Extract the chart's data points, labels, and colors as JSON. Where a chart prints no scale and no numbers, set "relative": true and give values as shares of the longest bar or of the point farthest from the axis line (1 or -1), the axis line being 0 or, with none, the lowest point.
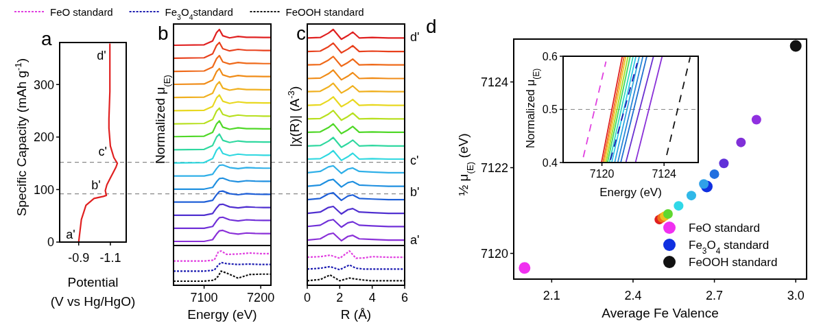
{
  "chart_data": [
    {
      "type": "line",
      "title": "a",
      "xlabel": "Potential\n(V vs Hg/HgO)",
      "ylabel": "Specific Capacity (mAh g$^{-1}$)",
      "xlim": [
        -0.78,
        -1.2
      ],
      "ylim": [
        0,
        380
      ],
      "xticks": [
        -0.9,
        -1.1
      ],
      "yticks": [
        0,
        100,
        200,
        300
      ],
      "x": [
        -0.9,
        -0.917,
        -0.946,
        -0.997,
        -1.056,
        -1.075,
        -1.068,
        -1.078,
        -1.1,
        -1.136,
        -1.144,
        -1.122,
        -1.1,
        -1.091,
        -1.091,
        -1.097,
        -1.097
      ],
      "series": [
        {
          "color": "#e02020",
          "values": [
            0,
            43,
            70,
            83,
            87,
            89,
            98,
            109,
            122,
            143,
            150,
            161,
            183,
            217,
            235,
            287,
            378
          ]
        }
      ],
      "ref_lines": [
        {
          "axis": "y",
          "value": 152,
          "color": "#888888",
          "line_style": "dashed"
        },
        {
          "axis": "y",
          "value": 92,
          "color": "#888888",
          "line_style": "dashed"
        }
      ],
      "annotations": [
        {
          "text": "a'",
          "x": -0.9,
          "y": 15
        },
        {
          "text": "b'",
          "x": -1.06,
          "y": 108
        },
        {
          "text": "c'",
          "x": -1.1,
          "y": 172
        },
        {
          "text": "d'",
          "x": -1.095,
          "y": 355
        }
      ]
    },
    {
      "type": "line",
      "title": "b",
      "ylabel": "Normalized μ$_{(E)}$",
      "relative": true,
      "tick_labels": false,
      "xlim": [
        7046,
        7218
      ],
      "x": [
        7046,
        7100,
        7115,
        7122,
        7127,
        7133,
        7145,
        7160,
        7175,
        7190,
        7205,
        7218
      ],
      "series": [
        {
          "color": "#e02020",
          "values": [
            0.927,
            0.929,
            0.947,
            0.986,
            1,
            0.971,
            0.961,
            0.968,
            0.964,
            0.964,
            0.963,
            0.963
          ]
        },
        {
          "color": "#e8401c",
          "values": [
            0.867,
            0.869,
            0.887,
            0.926,
            0.94,
            0.911,
            0.901,
            0.908,
            0.904,
            0.904,
            0.903,
            0.903
          ]
        },
        {
          "color": "#ef6a1a",
          "values": [
            0.806,
            0.808,
            0.826,
            0.865,
            0.879,
            0.85,
            0.84,
            0.847,
            0.843,
            0.843,
            0.842,
            0.842
          ]
        },
        {
          "color": "#f08c18",
          "values": [
            0.746,
            0.748,
            0.766,
            0.805,
            0.819,
            0.79,
            0.78,
            0.787,
            0.783,
            0.783,
            0.782,
            0.782
          ]
        },
        {
          "color": "#f0b020",
          "values": [
            0.685,
            0.687,
            0.705,
            0.744,
            0.758,
            0.729,
            0.719,
            0.726,
            0.722,
            0.722,
            0.721,
            0.721
          ]
        },
        {
          "color": "#e8d820",
          "values": [
            0.624,
            0.626,
            0.644,
            0.683,
            0.697,
            0.668,
            0.658,
            0.665,
            0.661,
            0.661,
            0.66,
            0.66
          ]
        },
        {
          "color": "#b8e020",
          "values": [
            0.563,
            0.565,
            0.583,
            0.622,
            0.636,
            0.607,
            0.597,
            0.604,
            0.6,
            0.6,
            0.599,
            0.599
          ]
        },
        {
          "color": "#50d828",
          "values": [
            0.504,
            0.506,
            0.524,
            0.563,
            0.577,
            0.548,
            0.538,
            0.545,
            0.541,
            0.541,
            0.54,
            0.54
          ]
        },
        {
          "color": "#30d8a0",
          "values": [
            0.443,
            0.445,
            0.463,
            0.502,
            0.516,
            0.487,
            0.477,
            0.484,
            0.48,
            0.48,
            0.479,
            0.479
          ]
        },
        {
          "color": "#30d8e0",
          "values": [
            0.382,
            0.384,
            0.402,
            0.441,
            0.455,
            0.426,
            0.416,
            0.423,
            0.419,
            0.419,
            0.418,
            0.418
          ]
        },
        {
          "color": "#30b0e8",
          "values": [
            0.322,
            0.322,
            0.33,
            0.356,
            0.371,
            0.373,
            0.361,
            0.356,
            0.361,
            0.359,
            0.358,
            0.358
          ]
        },
        {
          "color": "#2090e0",
          "values": [
            0.261,
            0.261,
            0.269,
            0.295,
            0.31,
            0.312,
            0.3,
            0.295,
            0.3,
            0.298,
            0.297,
            0.297
          ]
        },
        {
          "color": "#2060d8",
          "values": [
            0.201,
            0.201,
            0.209,
            0.235,
            0.25,
            0.252,
            0.24,
            0.235,
            0.24,
            0.238,
            0.237,
            0.237
          ]
        },
        {
          "color": "#5030d0",
          "values": [
            0.14,
            0.14,
            0.148,
            0.174,
            0.189,
            0.191,
            0.179,
            0.174,
            0.179,
            0.177,
            0.176,
            0.176
          ]
        },
        {
          "color": "#7030d8",
          "values": [
            0.08,
            0.08,
            0.088,
            0.114,
            0.129,
            0.131,
            0.119,
            0.114,
            0.119,
            0.117,
            0.116,
            0.116
          ]
        },
        {
          "color": "#8a30d8",
          "values": [
            0.019,
            0.019,
            0.027,
            0.053,
            0.068,
            0.07,
            0.058,
            0.053,
            0.058,
            0.056,
            0.055,
            0.055
          ]
        }
      ]
    },
    {
      "type": "line",
      "xlabel": "Energy (eV)",
      "relative": true,
      "tick_labels": "x",
      "legend": "top",
      "xlim": [
        7046,
        7218
      ],
      "xticks": [
        7100,
        7200
      ],
      "x": [
        7046,
        7100,
        7118,
        7125,
        7130,
        7140,
        7160,
        7180,
        7200,
        7218
      ],
      "series": [
        {
          "name": "FeO standard",
          "color": "#e040e0",
          "line_style": "dotted",
          "values": [
            0.707,
            0.707,
            0.736,
            0.971,
            1,
            0.901,
            0.912,
            0.941,
            0.923,
            0.923
          ]
        },
        {
          "name": "Fe$_{3}$O$_{4}$standard",
          "color": "#1a1ab0",
          "line_style": "dotted",
          "values": [
            0.413,
            0.413,
            0.443,
            0.589,
            0.666,
            0.63,
            0.607,
            0.619,
            0.607,
            0.607
          ]
        },
        {
          "name": "FeOOH standard",
          "color": "#111111",
          "line_style": "dotted",
          "values": [
            0.12,
            0.12,
            0.149,
            0.267,
            0.413,
            0.355,
            0.208,
            0.314,
            0.325,
            0.325
          ]
        }
      ]
    },
    {
      "type": "line",
      "title": "c",
      "ylabel": "|χ(R)| (A$^{-3}$)",
      "relative": true,
      "tick_labels": false,
      "xlim": [
        0,
        6
      ],
      "x": [
        0,
        0.8,
        1.3,
        1.6,
        2.1,
        2.5,
        2.8,
        3.2,
        4,
        5,
        6
      ],
      "series": [
        {
          "color": "#e02020",
          "values": [
            0.961,
            0.963,
            0.983,
            1,
            0.955,
            0.972,
            0.988,
            0.961,
            0.963,
            0.961,
            0.961
          ]
        },
        {
          "color": "#e8401c",
          "values": [
            0.898,
            0.9,
            0.92,
            0.937,
            0.892,
            0.909,
            0.925,
            0.898,
            0.9,
            0.898,
            0.898
          ]
        },
        {
          "color": "#ef6a1a",
          "values": [
            0.836,
            0.838,
            0.858,
            0.875,
            0.83,
            0.847,
            0.863,
            0.836,
            0.838,
            0.836,
            0.836
          ]
        },
        {
          "color": "#f08c18",
          "values": [
            0.773,
            0.775,
            0.795,
            0.812,
            0.767,
            0.784,
            0.8,
            0.773,
            0.775,
            0.773,
            0.773
          ]
        },
        {
          "color": "#f0b020",
          "values": [
            0.712,
            0.714,
            0.734,
            0.751,
            0.706,
            0.723,
            0.739,
            0.712,
            0.714,
            0.712,
            0.712
          ]
        },
        {
          "color": "#e8d820",
          "values": [
            0.649,
            0.651,
            0.671,
            0.688,
            0.643,
            0.66,
            0.676,
            0.649,
            0.651,
            0.649,
            0.649
          ]
        },
        {
          "color": "#b8e020",
          "values": [
            0.586,
            0.588,
            0.608,
            0.625,
            0.58,
            0.597,
            0.613,
            0.586,
            0.588,
            0.586,
            0.586
          ]
        },
        {
          "color": "#50d828",
          "values": [
            0.524,
            0.526,
            0.546,
            0.563,
            0.518,
            0.535,
            0.551,
            0.524,
            0.526,
            0.524,
            0.524
          ]
        },
        {
          "color": "#30d8a0",
          "values": [
            0.461,
            0.463,
            0.483,
            0.5,
            0.455,
            0.472,
            0.488,
            0.461,
            0.463,
            0.461,
            0.461
          ]
        },
        {
          "color": "#30d8e0",
          "values": [
            0.4,
            0.402,
            0.422,
            0.439,
            0.394,
            0.411,
            0.427,
            0.4,
            0.402,
            0.4,
            0.4
          ]
        },
        {
          "color": "#30b0e8",
          "values": [
            0.337,
            0.343,
            0.364,
            0.369,
            0.334,
            0.354,
            0.359,
            0.343,
            0.34,
            0.337,
            0.337
          ]
        },
        {
          "color": "#2090e0",
          "values": [
            0.274,
            0.28,
            0.301,
            0.306,
            0.271,
            0.291,
            0.296,
            0.28,
            0.277,
            0.274,
            0.274
          ]
        },
        {
          "color": "#2060d8",
          "values": [
            0.212,
            0.218,
            0.239,
            0.244,
            0.209,
            0.229,
            0.234,
            0.218,
            0.215,
            0.212,
            0.212
          ]
        },
        {
          "color": "#5030d0",
          "values": [
            0.149,
            0.155,
            0.176,
            0.181,
            0.146,
            0.166,
            0.171,
            0.155,
            0.152,
            0.149,
            0.149
          ]
        },
        {
          "color": "#7030d8",
          "values": [
            0.088,
            0.094,
            0.115,
            0.12,
            0.085,
            0.105,
            0.11,
            0.094,
            0.091,
            0.088,
            0.088
          ]
        },
        {
          "color": "#8a30d8",
          "values": [
            0.025,
            0.031,
            0.052,
            0.057,
            0.022,
            0.042,
            0.047,
            0.031,
            0.028,
            0.025,
            0.025
          ]
        }
      ],
      "annotations": [
        {
          "text": "d'",
          "x": 6,
          "y": 0.966
        },
        {
          "text": "c'",
          "x": 6,
          "y": 0.393
        },
        {
          "text": "b'",
          "x": 6,
          "y": 0.247
        },
        {
          "text": "a'",
          "x": 6,
          "y": 0.025
        }
      ]
    },
    {
      "type": "line",
      "xlabel": "R (Å)",
      "relative": true,
      "tick_labels": "x",
      "xlim": [
        0,
        6
      ],
      "xticks": [
        0,
        2,
        4,
        6
      ],
      "x": [
        0,
        0.8,
        1.4,
        2.0,
        2.6,
        3.0,
        3.5,
        4,
        5,
        6
      ],
      "series": [
        {
          "color": "#e040e0",
          "line_style": "dotted",
          "values": [
            0.818,
            0.836,
            0.879,
            0.788,
            1,
            0.788,
            0.799,
            0.836,
            0.818,
            0.818
          ]
        },
        {
          "color": "#1a1ab0",
          "line_style": "dotted",
          "values": [
            0.472,
            0.497,
            0.545,
            0.454,
            0.593,
            0.497,
            0.472,
            0.472,
            0.472,
            0.472
          ]
        },
        {
          "color": "#111111",
          "line_style": "dotted",
          "values": [
            0.132,
            0.168,
            0.302,
            0.132,
            0.211,
            0.181,
            0.15,
            0.132,
            0.132,
            0.132
          ]
        }
      ]
    },
    {
      "type": "scatter",
      "title": "d",
      "xlabel": "Average Fe Valence",
      "ylabel": "½ μ$_{(E)}$ (eV)",
      "xlim": [
        1.96,
        3.04
      ],
      "ylim": [
        7119.4,
        7125
      ],
      "xticks": [
        2.1,
        2.4,
        2.7,
        {
          "value": 3,
          "label": "3.0"
        }
      ],
      "yticks": [
        7120,
        7122,
        7124
      ],
      "marker": "circle",
      "legend": "bottom right",
      "series": [
        {
          "name": "FeO standard",
          "color": "#f030f0",
          "x": [
            2.0
          ],
          "values": [
            7119.66
          ]
        },
        {
          "name": "Fe$_{3}$O$_{4}$ standard",
          "color": "#1030e0",
          "x": [
            2.672
          ],
          "values": [
            7121.56
          ]
        },
        {
          "name": "FeOOH standard",
          "color": "#111111",
          "x": [
            3.0
          ],
          "values": [
            7124.84
          ]
        },
        {
          "x": [
            2.497,
            2.507,
            2.517,
            2.529,
            2.568,
            2.615,
            2.661,
            2.7,
            2.735,
            2.798,
            2.855
          ],
          "values": [
            7120.79,
            7120.83,
            7120.87,
            7120.92,
            7121.11,
            7121.35,
            7121.62,
            7121.85,
            7122.1,
            7122.59,
            7123.12
          ],
          "colors": [
            "#e02020",
            "#f07018",
            "#f0c020",
            "#60d830",
            "#30d8e8",
            "#30b8e8",
            "#30a0e8",
            "#2070e0",
            "#6030d8",
            "#8030d8",
            "#9030e0"
          ]
        }
      ]
    },
    {
      "type": "line",
      "xlabel": "Energy (eV)",
      "ylabel": "Normalized μ$_{(E)}$",
      "xlim": [
        7117.5,
        7126.2
      ],
      "ylim": [
        0.4,
        0.6
      ],
      "xticks": [
        7120,
        7124
      ],
      "yticks": [
        0.4,
        0.5,
        0.6
      ],
      "ref_lines": [
        {
          "axis": "y",
          "value": 0.5,
          "color": "#888888",
          "line_style": "dashed"
        }
      ],
      "series": [
        {
          "color": "#e040e0",
          "line_style": "dashed",
          "x": [
            7118.8,
            7120.26
          ],
          "values": [
            0.41,
            0.59
          ]
        },
        {
          "color": "#e02020",
          "x": [
            7119.97,
            7121.31
          ],
          "values": [
            0.4,
            0.6
          ]
        },
        {
          "color": "#f07018",
          "x": [
            7120.07,
            7121.43
          ],
          "values": [
            0.4,
            0.6
          ]
        },
        {
          "color": "#f0c020",
          "x": [
            7120.16,
            7121.54
          ],
          "values": [
            0.4,
            0.6
          ]
        },
        {
          "color": "#a0e020",
          "x": [
            7120.26,
            7121.68
          ],
          "values": [
            0.4,
            0.6
          ]
        },
        {
          "color": "#40d860",
          "x": [
            7120.36,
            7121.82
          ],
          "values": [
            0.4,
            0.6
          ]
        },
        {
          "color": "#30d8c0",
          "x": [
            7120.48,
            7122.01
          ],
          "values": [
            0.4,
            0.6
          ]
        },
        {
          "color": "#30c8e8",
          "x": [
            7120.63,
            7122.19
          ],
          "values": [
            0.4,
            0.6
          ]
        },
        {
          "color": "#30a8e0",
          "x": [
            7120.82,
            7122.41
          ],
          "values": [
            0.4,
            0.6
          ]
        },
        {
          "color": "#2888d8",
          "x": [
            7121.02,
            7122.64
          ],
          "values": [
            0.4,
            0.6
          ]
        },
        {
          "color": "#2070d0",
          "x": [
            7121.21,
            7122.89
          ],
          "values": [
            0.4,
            0.6
          ]
        },
        {
          "color": "#6a30d0",
          "x": [
            7121.54,
            7123.32
          ],
          "values": [
            0.4,
            0.6
          ]
        },
        {
          "color": "#8a30d8",
          "x": [
            7122.16,
            7123.88
          ],
          "values": [
            0.4,
            0.6
          ]
        },
        {
          "color": "#1a1ab0",
          "line_style": "dashed",
          "x": [
            7120.55,
            7122.27
          ],
          "values": [
            0.405,
            0.587
          ]
        },
        {
          "color": "#111111",
          "line_style": "dashed",
          "x": [
            7124.17,
            7125.68
          ],
          "values": [
            0.414,
            0.598
          ]
        }
      ]
    }
  ]
}
